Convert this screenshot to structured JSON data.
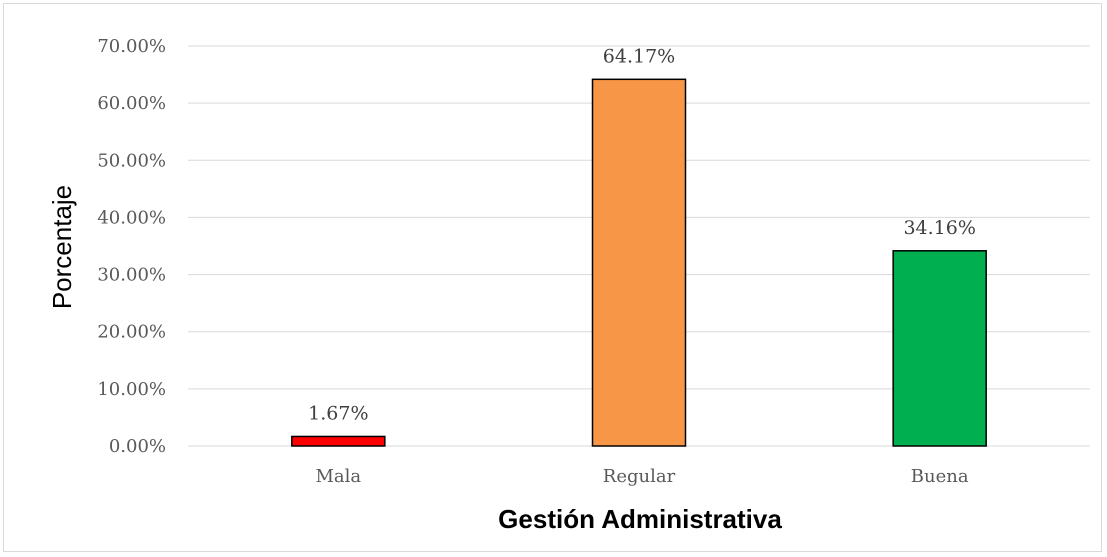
{
  "chart_data": {
    "type": "bar",
    "categories": [
      "Mala",
      "Regular",
      "Buena"
    ],
    "values": [
      1.67,
      64.17,
      34.16
    ],
    "value_labels": [
      "1.67%",
      "64.17%",
      "34.16%"
    ],
    "colors": [
      "#ff0000",
      "#f79646",
      "#00b050"
    ],
    "xlabel": "Gestión Administrativa",
    "ylabel": "Porcentaje",
    "ylim": [
      0,
      70
    ],
    "yticks": [
      0,
      10,
      20,
      30,
      40,
      50,
      60,
      70
    ],
    "ytick_labels": [
      "0.00%",
      "10.00%",
      "20.00%",
      "30.00%",
      "40.00%",
      "50.00%",
      "60.00%",
      "70.00%"
    ],
    "grid": true,
    "legend": false
  }
}
